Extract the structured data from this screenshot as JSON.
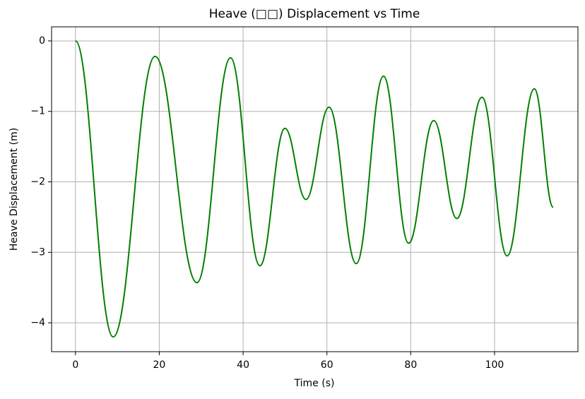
{
  "chart_data": {
    "type": "line",
    "title": "Heave (□□) Displacement vs Time",
    "xlabel": "Time (s)",
    "ylabel": "Heave Displacement (m)",
    "x": [
      0,
      9,
      19,
      29,
      37,
      44,
      50,
      55,
      60.5,
      67,
      73.5,
      79.5,
      85.5,
      91,
      97,
      103,
      109.5,
      114
    ],
    "series": [
      {
        "name": "Heave",
        "color": "#008000",
        "values": [
          0,
          -4.2,
          -0.22,
          -3.43,
          -0.24,
          -3.19,
          -1.24,
          -2.25,
          -0.94,
          -3.16,
          -0.5,
          -2.87,
          -1.13,
          -2.52,
          -0.8,
          -3.05,
          -0.68,
          -2.36
        ]
      }
    ],
    "xlim": [
      -5.7,
      119.9
    ],
    "ylim": [
      -4.41,
      0.2
    ],
    "xticks": [
      0,
      20,
      40,
      60,
      80,
      100
    ],
    "yticks": [
      {
        "value": -4,
        "label": "−4"
      },
      {
        "value": -3,
        "label": "−3"
      },
      {
        "value": -2,
        "label": "−2"
      },
      {
        "value": -1,
        "label": "−1"
      },
      0
    ],
    "grid": true
  }
}
